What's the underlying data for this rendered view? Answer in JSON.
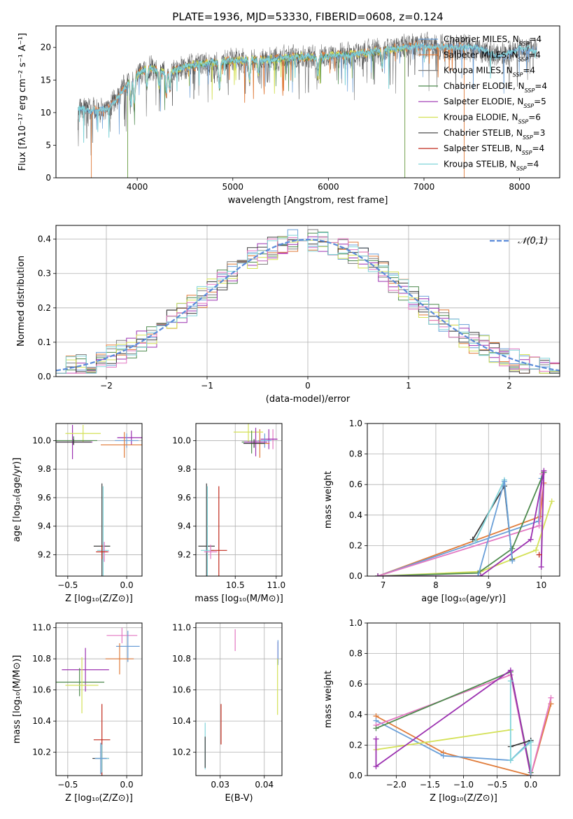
{
  "figure_title": "PLATE=1936, MJD=53330, FIBERID=0608, z=0.124",
  "colors": {
    "c_miles": "#6a9fd8",
    "s_miles": "#e07b39",
    "k_miles": "#7f7f7f",
    "c_elodie": "#4e8a4e",
    "s_elodie": "#9b30b0",
    "k_elodie": "#d4e157",
    "c_stelib": "#3c3c3c",
    "s_stelib": "#c0281b",
    "k_stelib": "#80d4d9",
    "pink": "#e377c2",
    "normal": "#5b8bd9"
  },
  "chart_data": [
    {
      "id": "spectrum",
      "type": "line",
      "title": "PLATE=1936, MJD=53330, FIBERID=0608, z=0.124",
      "xlabel": "wavelength [Angstrom, rest frame]",
      "ylabel": "Flux [fλ10⁻¹⁷ erg cm⁻² s⁻¹ A⁻¹]",
      "xlim": [
        3150,
        8420
      ],
      "ylim": [
        0,
        23.3
      ],
      "xticks": [
        4000,
        5000,
        6000,
        7000,
        8000
      ],
      "yticks": [
        0,
        5,
        10,
        15,
        20
      ],
      "grid": false,
      "legend_position": "upper right",
      "legend": [
        {
          "label": "Chabrier MILES, N",
          "sub": "SSP",
          "count": "=4",
          "color": "#6a9fd8"
        },
        {
          "label": "Salpeter MILES, N",
          "sub": "SSP",
          "count": "=4",
          "color": "#e07b39"
        },
        {
          "label": "Kroupa MILES, N",
          "sub": "SSP",
          "count": "=4",
          "color": "#7f7f7f"
        },
        {
          "label": "Chabrier ELODIE, N",
          "sub": "SSP",
          "count": "=4",
          "color": "#4e8a4e"
        },
        {
          "label": "Salpeter ELODIE, N",
          "sub": "SSP",
          "count": "=5",
          "color": "#9b30b0"
        },
        {
          "label": "Kroupa ELODIE, N",
          "sub": "SSP",
          "count": "=6",
          "color": "#d4e157"
        },
        {
          "label": "Chabrier STELIB, N",
          "sub": "SSP",
          "count": "=3",
          "color": "#3c3c3c"
        },
        {
          "label": "Salpeter STELIB, N",
          "sub": "SSP",
          "count": "=4",
          "color": "#c0281b"
        },
        {
          "label": "Kroupa STELIB, N",
          "sub": "SSP",
          "count": "=4",
          "color": "#80d4d9"
        }
      ],
      "continuum": [
        [
          3380,
          11
        ],
        [
          3500,
          10.2
        ],
        [
          3700,
          10.5
        ],
        [
          3900,
          14.5
        ],
        [
          4100,
          17
        ],
        [
          4300,
          16
        ],
        [
          4500,
          17
        ],
        [
          4800,
          17.7
        ],
        [
          5100,
          18
        ],
        [
          5400,
          18.2
        ],
        [
          5700,
          18.5
        ],
        [
          6000,
          18.6
        ],
        [
          6300,
          19
        ],
        [
          6600,
          19.6
        ],
        [
          6900,
          20.3
        ],
        [
          7200,
          20
        ],
        [
          7500,
          20.1
        ],
        [
          7800,
          18.6
        ],
        [
          8000,
          19.8
        ],
        [
          8180,
          19.5
        ]
      ],
      "ranges": {
        "observed": [
          3380,
          8180
        ],
        "miles": [
          3520,
          7420
        ],
        "elodie": [
          3900,
          6800
        ],
        "stelib": [
          3380,
          8180
        ]
      },
      "absorption_lines": [
        [
          3934,
          3.5
        ],
        [
          3969,
          4
        ],
        [
          4102,
          3
        ],
        [
          4227,
          2.2
        ],
        [
          4304,
          3
        ],
        [
          4341,
          2.5
        ],
        [
          4861,
          4
        ],
        [
          5175,
          3
        ],
        [
          5270,
          2
        ],
        [
          5890,
          3
        ],
        [
          6563,
          2.5
        ]
      ]
    },
    {
      "id": "residuals",
      "type": "bar",
      "xlabel": "(data-model)/error",
      "ylabel": "Normed distribution",
      "xlim": [
        -2.5,
        2.5
      ],
      "ylim": [
        0,
        0.44
      ],
      "xticks": [
        -2,
        -1,
        0,
        1,
        2
      ],
      "yticks": [
        0.0,
        0.1,
        0.2,
        0.3,
        0.4
      ],
      "grid": true,
      "legend_position": "upper right",
      "legend": [
        {
          "label": "𝒩(0,1)",
          "style": "dashed",
          "color": "#5b8bd9"
        }
      ],
      "bin_width": 0.1,
      "bins_start": -2.5,
      "n_histograms": 9
    },
    {
      "id": "age-vs-Z",
      "type": "scatter",
      "xlabel": "Z [log₁₀(Z/Z⊙)]",
      "ylabel": "age  [log₁₀(age/yr)]",
      "xlim": [
        -0.6,
        0.13
      ],
      "ylim": [
        9.05,
        10.12
      ],
      "xticks": [
        -0.5,
        0.0
      ],
      "yticks": [
        9.2,
        9.4,
        9.6,
        9.8,
        10.0
      ],
      "grid": true,
      "points": [
        {
          "x": 0.04,
          "y": 10.02,
          "xerr": 0.12,
          "yerr": 0.05,
          "color": "#9b30b0"
        },
        {
          "x": 0.0,
          "y": 10.0,
          "xerr": 0.1,
          "yerr": 0.05,
          "color": "#6a9fd8"
        },
        {
          "x": -0.02,
          "y": 9.97,
          "xerr": 0.2,
          "yerr": 0.09,
          "color": "#e07b39"
        },
        {
          "x": -0.46,
          "y": 9.99,
          "xerr": 0.17,
          "yerr": 0.12,
          "color": "#9b30b0"
        },
        {
          "x": -0.37,
          "y": 10.05,
          "xerr": 0.15,
          "yerr": 0.06,
          "color": "#d4e157"
        },
        {
          "x": -0.45,
          "y": 10.0,
          "xerr": 0.2,
          "yerr": 0.03,
          "color": "#4e8a4e"
        },
        {
          "x": -0.45,
          "y": 9.99,
          "xerr": 0.15,
          "yerr": 0.02,
          "color": "#3c3c3c"
        },
        {
          "x": -0.21,
          "y": 9.26,
          "xerr": 0.07,
          "yerr": 0.44,
          "color": "#3c3c3c"
        },
        {
          "x": -0.2,
          "y": 9.23,
          "xerr": 0.05,
          "yerr": 0.45,
          "color": "#80d4d9"
        },
        {
          "x": -0.19,
          "y": 9.22,
          "xerr": 0.04,
          "yerr": 0.07,
          "color": "#e377c2"
        },
        {
          "x": -0.21,
          "y": 9.22,
          "xerr": 0.05,
          "yerr": 0.05,
          "color": "#c0281b"
        }
      ]
    },
    {
      "id": "age-vs-mass",
      "type": "scatter",
      "xlabel": "mass [log₁₀(M/M⊙)]",
      "ylabel": "",
      "xlim": [
        10.02,
        11.07
      ],
      "ylim": [
        9.05,
        10.12
      ],
      "xticks": [
        10.5,
        11.0
      ],
      "yticks": [
        9.2,
        9.4,
        9.6,
        9.8,
        10.0
      ],
      "grid": true,
      "points": [
        {
          "x": 10.96,
          "y": 10.01,
          "xerr": 0.06,
          "yerr": 0.07,
          "color": "#e377c2"
        },
        {
          "x": 10.91,
          "y": 10.01,
          "xerr": 0.1,
          "yerr": 0.07,
          "color": "#9b30b0"
        },
        {
          "x": 10.86,
          "y": 10.0,
          "xerr": 0.08,
          "yerr": 0.05,
          "color": "#6a9fd8"
        },
        {
          "x": 10.8,
          "y": 9.98,
          "xerr": 0.12,
          "yerr": 0.1,
          "color": "#e07b39"
        },
        {
          "x": 10.66,
          "y": 10.06,
          "xerr": 0.18,
          "yerr": 0.07,
          "color": "#d4e157"
        },
        {
          "x": 10.7,
          "y": 9.99,
          "xerr": 0.12,
          "yerr": 0.08,
          "color": "#4e8a4e"
        },
        {
          "x": 10.75,
          "y": 9.99,
          "xerr": 0.14,
          "yerr": 0.1,
          "color": "#9b30b0"
        },
        {
          "x": 10.73,
          "y": 9.98,
          "xerr": 0.13,
          "yerr": 0.03,
          "color": "#3c3c3c"
        },
        {
          "x": 10.15,
          "y": 9.26,
          "xerr": 0.1,
          "yerr": 0.44,
          "color": "#3c3c3c"
        },
        {
          "x": 10.16,
          "y": 9.23,
          "xerr": 0.08,
          "yerr": 0.45,
          "color": "#80d4d9"
        },
        {
          "x": 10.3,
          "y": 9.23,
          "xerr": 0.1,
          "yerr": 0.45,
          "color": "#c0281b"
        },
        {
          "x": 10.2,
          "y": 9.22,
          "xerr": 0.08,
          "yerr": 0.05,
          "color": "#e377c2"
        }
      ]
    },
    {
      "id": "weight-vs-age",
      "type": "line",
      "xlabel": "age  [log₁₀(age/yr)]",
      "ylabel": "mass weight",
      "xlim": [
        6.7,
        10.35
      ],
      "ylim": [
        0.0,
        1.0
      ],
      "xticks": [
        7,
        8,
        9,
        10
      ],
      "yticks": [
        0.0,
        0.2,
        0.4,
        0.6,
        0.8,
        1.0
      ],
      "grid": true,
      "series": [
        {
          "color": "#e07b39",
          "x": [
            6.9,
            9.98,
            10.05
          ],
          "y": [
            0.0,
            0.39,
            0.61
          ]
        },
        {
          "color": "#6a9fd8",
          "x": [
            6.9,
            9.95,
            10.0
          ],
          "y": [
            0.0,
            0.36,
            0.64
          ]
        },
        {
          "color": "#e377c2",
          "x": [
            6.9,
            9.96,
            10.02
          ],
          "y": [
            0.0,
            0.33,
            0.67
          ]
        },
        {
          "color": "#d4e157",
          "x": [
            6.9,
            8.85,
            9.9,
            10.2
          ],
          "y": [
            0.0,
            0.03,
            0.17,
            0.49
          ]
        },
        {
          "color": "#4e8a4e",
          "x": [
            6.9,
            8.8,
            9.45,
            10.05
          ],
          "y": [
            0.0,
            0.02,
            0.18,
            0.68
          ]
        },
        {
          "color": "#9b30b0",
          "x": [
            6.9,
            8.85,
            9.8,
            10.05,
            10.0
          ],
          "y": [
            0.0,
            0.0,
            0.24,
            0.69,
            0.06
          ]
        },
        {
          "color": "#3c3c3c",
          "x": [
            8.7,
            9.3,
            9.45
          ],
          "y": [
            0.24,
            0.59,
            0.11
          ]
        },
        {
          "color": "#80d4d9",
          "x": [
            8.75,
            9.3,
            9.45
          ],
          "y": [
            0.23,
            0.63,
            0.1
          ]
        },
        {
          "color": "#6a9fd8",
          "x": [
            8.8,
            9.3,
            9.45
          ],
          "y": [
            0.0,
            0.62,
            0.1
          ]
        },
        {
          "color": "#c0281b",
          "x": [
            9.96
          ],
          "y": [
            0.14
          ]
        }
      ]
    },
    {
      "id": "mass-vs-Z",
      "type": "scatter",
      "xlabel": "Z [log₁₀(Z/Z⊙)]",
      "ylabel": "mass [log₁₀(M/M⊙)]",
      "xlim": [
        -0.6,
        0.13
      ],
      "ylim": [
        10.05,
        11.03
      ],
      "xticks": [
        -0.5,
        0.0
      ],
      "yticks": [
        10.2,
        10.4,
        10.6,
        10.8,
        11.0
      ],
      "grid": true,
      "points": [
        {
          "x": -0.04,
          "y": 10.95,
          "xerr": 0.13,
          "yerr": 0.05,
          "color": "#e377c2"
        },
        {
          "x": 0.01,
          "y": 10.88,
          "xerr": 0.1,
          "yerr": 0.1,
          "color": "#6a9fd8"
        },
        {
          "x": -0.06,
          "y": 10.8,
          "xerr": 0.12,
          "yerr": 0.1,
          "color": "#e07b39"
        },
        {
          "x": -0.35,
          "y": 10.73,
          "xerr": 0.2,
          "yerr": 0.14,
          "color": "#9b30b0"
        },
        {
          "x": -0.4,
          "y": 10.65,
          "xerr": 0.21,
          "yerr": 0.09,
          "color": "#4e8a4e"
        },
        {
          "x": -0.38,
          "y": 10.63,
          "xerr": 0.14,
          "yerr": 0.18,
          "color": "#d4e157"
        },
        {
          "x": -0.21,
          "y": 10.28,
          "xerr": 0.07,
          "yerr": 0.23,
          "color": "#c0281b"
        },
        {
          "x": -0.22,
          "y": 10.16,
          "xerr": 0.07,
          "yerr": 0.1,
          "color": "#3c3c3c"
        },
        {
          "x": -0.21,
          "y": 10.16,
          "xerr": 0.06,
          "yerr": 0.09,
          "color": "#80d4d9"
        },
        {
          "x": -0.22,
          "y": 10.16,
          "xerr": 0.05,
          "yerr": 0.1,
          "color": "#6a9fd8"
        }
      ]
    },
    {
      "id": "mass-vs-EBV",
      "type": "scatter",
      "xlabel": "E(B-V)",
      "ylabel": "",
      "xlim": [
        0.0245,
        0.044
      ],
      "ylim": [
        10.05,
        11.03
      ],
      "xticks": [
        0.03,
        0.04
      ],
      "yticks": [
        10.2,
        10.4,
        10.6,
        10.8,
        11.0
      ],
      "grid": true,
      "points": [
        {
          "x": 0.0334,
          "y": 10.92,
          "xerr": 0.0,
          "yerr": 0.07,
          "color": "#e377c2"
        },
        {
          "x": 0.0431,
          "y": 10.84,
          "xerr": 0.0,
          "yerr": 0.07,
          "color": "#9b30b0"
        },
        {
          "x": 0.0431,
          "y": 10.84,
          "xerr": 0.0,
          "yerr": 0.08,
          "color": "#6a9fd8"
        },
        {
          "x": 0.043,
          "y": 10.62,
          "xerr": 0.0,
          "yerr": 0.18,
          "color": "#d4e157"
        },
        {
          "x": 0.0302,
          "y": 10.38,
          "xerr": 0.0,
          "yerr": 0.13,
          "color": "#c0281b"
        },
        {
          "x": 0.0266,
          "y": 10.24,
          "xerr": 0.0,
          "yerr": 0.15,
          "color": "#80d4d9"
        },
        {
          "x": 0.0266,
          "y": 10.2,
          "xerr": 0.0,
          "yerr": 0.1,
          "color": "#3c3c3c"
        }
      ]
    },
    {
      "id": "weight-vs-Z",
      "type": "line",
      "xlabel": "Z [log₁₀(Z/Z⊙)]",
      "ylabel": "mass weight",
      "xlim": [
        -2.43,
        0.43
      ],
      "ylim": [
        0.0,
        1.0
      ],
      "xticks": [
        -2.0,
        -1.5,
        -1.0,
        -0.5,
        0.0
      ],
      "yticks": [
        0.0,
        0.2,
        0.4,
        0.6,
        0.8,
        1.0
      ],
      "grid": true,
      "series": [
        {
          "color": "#e07b39",
          "x": [
            -2.3,
            -1.3,
            0.0,
            0.3
          ],
          "y": [
            0.39,
            0.15,
            0.0,
            0.47
          ]
        },
        {
          "color": "#6a9fd8",
          "x": [
            -2.3,
            -1.3,
            -0.3,
            0.0
          ],
          "y": [
            0.36,
            0.13,
            0.1,
            0.23
          ]
        },
        {
          "color": "#e377c2",
          "x": [
            -2.3,
            -0.3,
            0.0,
            0.3
          ],
          "y": [
            0.33,
            0.66,
            0.0,
            0.51
          ]
        },
        {
          "color": "#d4e157",
          "x": [
            -2.3,
            -0.3
          ],
          "y": [
            0.17,
            0.3
          ]
        },
        {
          "color": "#4e8a4e",
          "x": [
            -2.3,
            -0.3,
            0.0
          ],
          "y": [
            0.31,
            0.68,
            0.02
          ]
        },
        {
          "color": "#9b30b0",
          "x": [
            -2.3,
            -2.3,
            -0.3,
            0.0
          ],
          "y": [
            0.24,
            0.06,
            0.69,
            0.0
          ]
        },
        {
          "color": "#3c3c3c",
          "x": [
            -0.3,
            0.0
          ],
          "y": [
            0.19,
            0.23
          ]
        },
        {
          "color": "#80d4d9",
          "x": [
            -0.3,
            -0.3,
            0.0,
            0.0
          ],
          "y": [
            0.62,
            0.1,
            0.22,
            0.0
          ]
        }
      ]
    }
  ]
}
